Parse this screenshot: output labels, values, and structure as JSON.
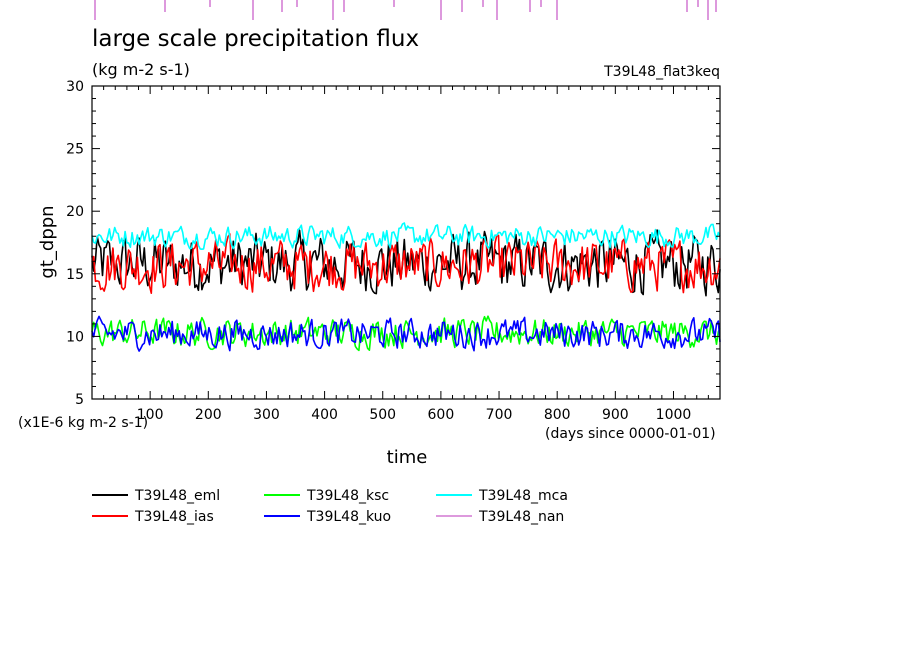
{
  "chart_data": {
    "type": "line",
    "title": "large scale precipitation flux",
    "units": "(kg m-2 s-1)",
    "experiment": "T39L48_flat3keq",
    "ylabel": "gt_dppn",
    "xlabel": "time",
    "yscale_note": "(x1E-6 kg m-2 s-1)",
    "xunit_note": "(days since 0000-01-01)",
    "xlim": [
      0,
      1080
    ],
    "ylim": [
      5,
      30
    ],
    "xticks": [
      100,
      200,
      300,
      400,
      500,
      600,
      700,
      800,
      900,
      1000
    ],
    "yticks": [
      5,
      10,
      15,
      20,
      25,
      30
    ],
    "legend_position": "bottom",
    "series": [
      {
        "name": "T39L48_eml",
        "color": "#000000",
        "mean": 15.8,
        "min": 12.6,
        "max": 19.5
      },
      {
        "name": "T39L48_ias",
        "color": "#ff0000",
        "mean": 15.7,
        "min": 12.2,
        "max": 18.5
      },
      {
        "name": "T39L48_ksc",
        "color": "#00ff00",
        "mean": 10.3,
        "min": 8.4,
        "max": 11.9
      },
      {
        "name": "T39L48_kuo",
        "color": "#0000ff",
        "mean": 10.2,
        "min": 8.6,
        "max": 12.2
      },
      {
        "name": "T39L48_mca",
        "color": "#00ffff",
        "mean": 18.0,
        "min": 16.8,
        "max": 20.0
      },
      {
        "name": "T39L48_nan",
        "color": "#dd99dd",
        "mean": null,
        "min": null,
        "max": null
      }
    ]
  }
}
